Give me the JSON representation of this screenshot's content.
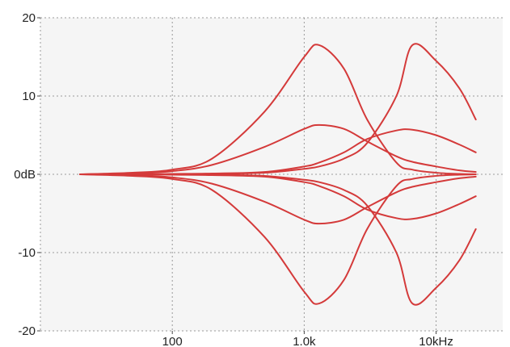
{
  "chart_data": {
    "type": "line",
    "title": "",
    "xlabel": "",
    "ylabel": "",
    "x_scale": "log",
    "xlim": [
      10,
      32000
    ],
    "ylim": [
      -20,
      20
    ],
    "grid": true,
    "colors": {
      "background": "#f5f5f5",
      "grid": "#9a9a9a",
      "curve": "#d43a3a"
    },
    "x_ticks": [
      {
        "value": 100,
        "label": "100"
      },
      {
        "value": 1000,
        "label": "1.0k"
      },
      {
        "value": 10000,
        "label": "10kHz"
      }
    ],
    "y_ticks": [
      {
        "value": 20,
        "label": "20"
      },
      {
        "value": 10,
        "label": "10"
      },
      {
        "value": 0,
        "label": "0dB"
      },
      {
        "value": -10,
        "label": "-10"
      },
      {
        "value": -20,
        "label": "-20"
      }
    ],
    "x": [
      20,
      50,
      100,
      200,
      500,
      1000,
      1300,
      2000,
      3000,
      5000,
      6600,
      10000,
      15000,
      20000
    ],
    "series": [
      {
        "values": [
          0,
          0.2,
          0.6,
          2.0,
          8.0,
          15.0,
          16.5,
          13.5,
          7.0,
          1.5,
          0.6,
          0.2,
          0.05,
          0
        ]
      },
      {
        "values": [
          0,
          0.1,
          0.4,
          1.2,
          3.5,
          5.8,
          6.3,
          5.8,
          4.2,
          2.3,
          1.6,
          1.0,
          0.5,
          0.3
        ]
      },
      {
        "values": [
          0,
          0,
          0.05,
          0.1,
          0.3,
          1.0,
          1.5,
          2.8,
          4.5,
          5.6,
          5.7,
          5.0,
          3.8,
          2.8
        ]
      },
      {
        "values": [
          0,
          0,
          0,
          0.05,
          0.2,
          0.7,
          1.0,
          2.0,
          4.0,
          10.0,
          16.5,
          14.5,
          11.0,
          7.0
        ]
      },
      {
        "values": [
          0,
          -0.2,
          -0.6,
          -2.0,
          -8.0,
          -15.0,
          -16.5,
          -13.5,
          -7.0,
          -1.5,
          -0.6,
          -0.2,
          -0.05,
          0
        ]
      },
      {
        "values": [
          0,
          -0.1,
          -0.4,
          -1.2,
          -3.5,
          -5.8,
          -6.3,
          -5.8,
          -4.2,
          -2.3,
          -1.6,
          -1.0,
          -0.5,
          -0.3
        ]
      },
      {
        "values": [
          0,
          0,
          -0.05,
          -0.1,
          -0.3,
          -1.0,
          -1.5,
          -2.8,
          -4.5,
          -5.6,
          -5.7,
          -5.0,
          -3.8,
          -2.8
        ]
      },
      {
        "values": [
          0,
          0,
          0,
          -0.05,
          -0.2,
          -0.7,
          -1.0,
          -2.0,
          -4.0,
          -10.0,
          -16.5,
          -14.5,
          -11.0,
          -7.0
        ]
      }
    ]
  }
}
